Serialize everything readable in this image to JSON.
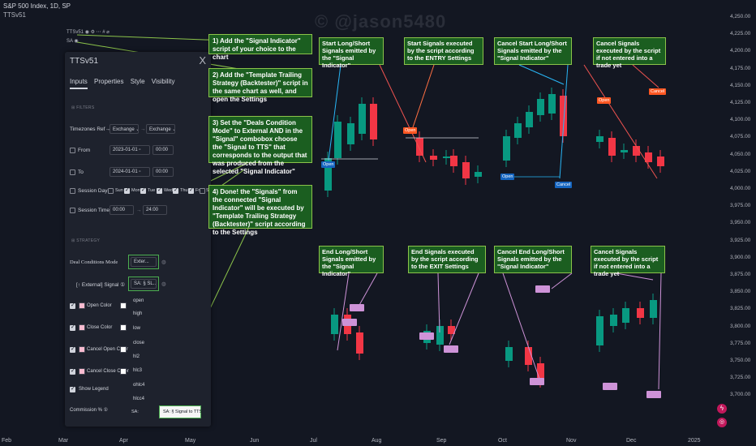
{
  "header": {
    "symbol": "S&P 500 Index, 1D, SP",
    "strategy_short": "TTSv51",
    "row1": "TTSv51",
    "row2": "SA",
    "watermark": "© @jason5480"
  },
  "panel": {
    "title": "TTSv51",
    "close": "X",
    "tabs": [
      "Inputs",
      "Properties",
      "Style",
      "Visibility"
    ],
    "section_filters": "FILTERS",
    "timezones_label": "Timezones Ref→Chart",
    "timezone_from": "Exchange",
    "timezone_to": "Exchange",
    "arrow": "→",
    "from_label": "From",
    "from_date": "2023-01-01",
    "from_time": "00:00",
    "to_label": "To",
    "to_date": "2024-01-01",
    "to_time": "00:00",
    "session_days_label": "Session Days",
    "days": [
      "Sun",
      "Mon",
      "Tue",
      "Wed",
      "Thu",
      "Fri",
      "Sat"
    ],
    "session_time_label": "Session Time",
    "session_start": "00:00",
    "session_end": "24:00",
    "section_strategy": "STRATEGY",
    "deal_mode_label": "Deal Conditions Mode",
    "deal_mode_value": "Exter...",
    "signal_label": "[↑ External] Signal ①",
    "signal_value": "SA: § SL...",
    "open_color": "Open Color",
    "close_color": "Close Color",
    "cancel_open_color": "Cancel Open Color",
    "cancel_close_color": "Cancel Close Color",
    "show_legend": "Show Legend",
    "commission": "Commission % ①",
    "dropdown_options": [
      "open",
      "high",
      "low",
      "close",
      "hl2",
      "hlc3",
      "ohlc4",
      "hlcc4"
    ],
    "dropdown_selected": "SA: § Signal to TTS"
  },
  "left_notes": [
    "1)  Add the \"Signal Indicator\" script of your choice to the chart",
    "2) Add the \"Template Trailing Strategy (Backtester)\" script in the same chart as well, and open the Settings",
    "3) Set the \"Deals Condition Mode\" to External AND in the \"Signal\" combobox choose the \"Signal to TTS\" that corresponds to the output that was produced from the selected \"Signal Indicator\"",
    "4) Done! the \"Signals\" from the connected \"Signal Indicator\" will be executed by \"Template Trailing Strategy (Backtester)\" script according to the Settings"
  ],
  "chart_notes": [
    "Start Long/Short Signals emitted by the \"Signal Indicator\"",
    "Start Signals executed by the script according to the ENTRY Settings",
    "Cancel Start Long/Short Signals emitted by the \"Signal Indicator\"",
    "Cancel Signals executed by the script if not entered into a trade yet",
    "End Long/Short Signals emitted by the \"Signal Indicator\"",
    "End Signals executed by the script according to the EXIT Settings",
    "Cancel End Long/Short Signals emitted by the \"Signal Indicator\"",
    "Cancel Signals executed by the script if not entered into a trade yet"
  ],
  "tags": {
    "open": "Open",
    "cancel": "Cancel"
  },
  "y_axis": [
    "4,250.00",
    "4,225.00",
    "4,200.00",
    "4,175.00",
    "4,150.00",
    "4,125.00",
    "4,100.00",
    "4,075.00",
    "4,050.00",
    "4,025.00",
    "4,000.00",
    "3,975.00",
    "3,950.00",
    "3,925.00",
    "3,900.00",
    "3,875.00",
    "3,850.00",
    "3,825.00",
    "3,800.00",
    "3,775.00",
    "3,750.00",
    "3,725.00",
    "3,700.00"
  ],
  "x_axis": [
    "Feb",
    "Mar",
    "Apr",
    "May",
    "Jun",
    "Jul",
    "Aug",
    "Sep",
    "Oct",
    "Nov",
    "Dec",
    "2025"
  ],
  "colors": {
    "bg": "#131722",
    "up": "#089981",
    "down": "#f23645",
    "note_bg": "#1b5e20",
    "note_border": "#8bc34a",
    "open_tag": "#1565c0",
    "cancel_tag": "#ff5722",
    "end_tag": "#ce93d8"
  }
}
